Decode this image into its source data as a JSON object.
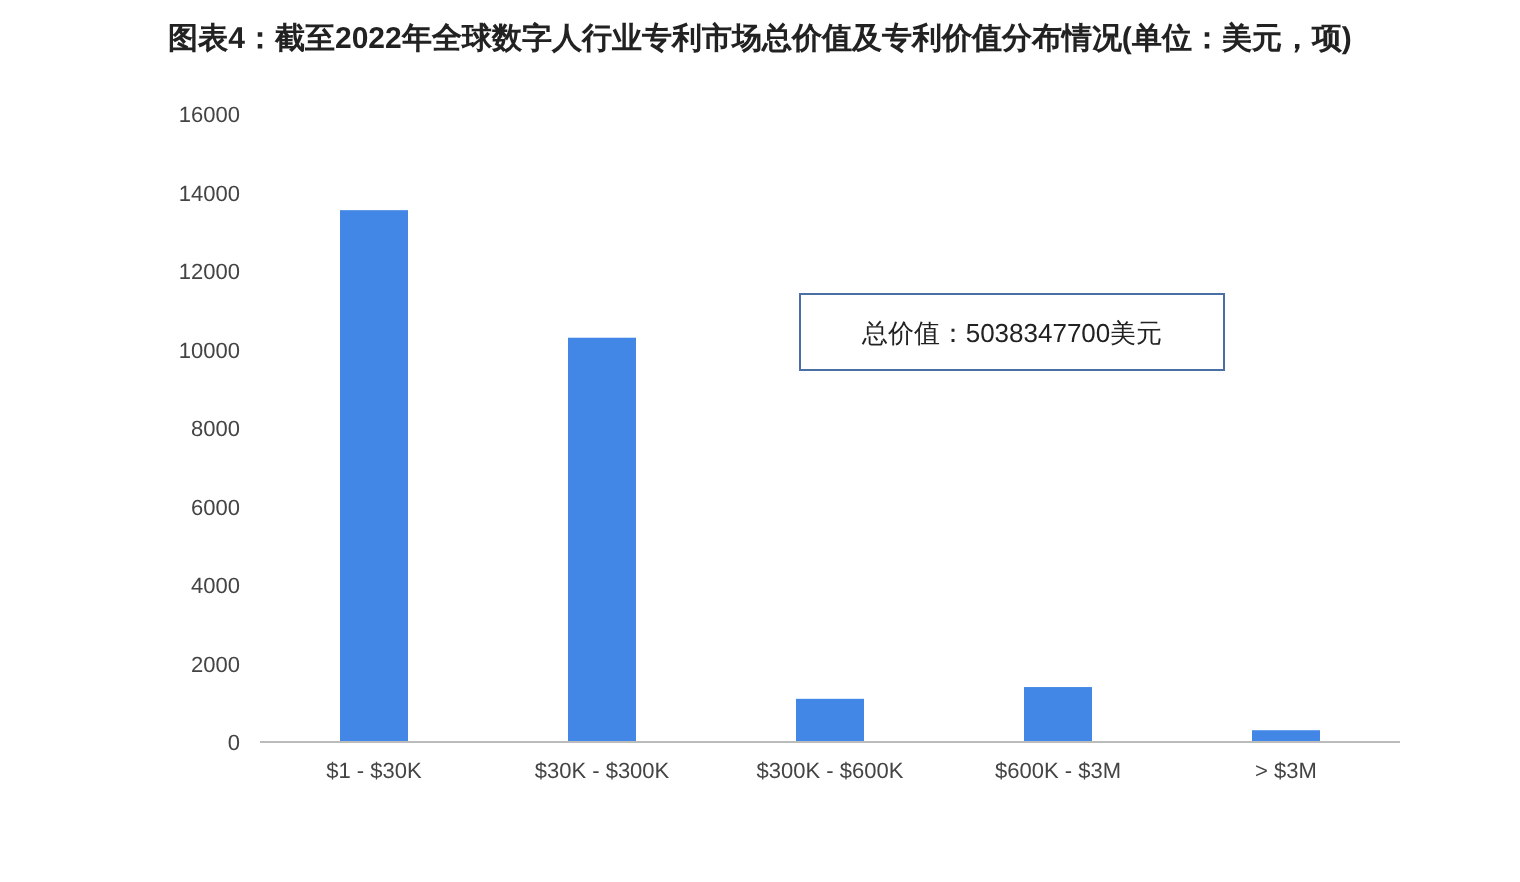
{
  "chart_data": {
    "type": "bar",
    "title": "图表4：截至2022年全球数字人行业专利市场总价值及专利价值分布情况(单位：美元，项)",
    "categories": [
      "$1 - $30K",
      "$30K - $300K",
      "$300K - $600K",
      "$600K - $3M",
      "> $3M"
    ],
    "values": [
      13550,
      10300,
      1100,
      1400,
      300
    ],
    "color": "#4287e5",
    "ylim": [
      0,
      16000
    ],
    "yticks": [
      0,
      2000,
      4000,
      6000,
      8000,
      10000,
      12000,
      14000,
      16000
    ],
    "grid": false,
    "annotations": [
      "总价值：5038347700美元"
    ]
  }
}
